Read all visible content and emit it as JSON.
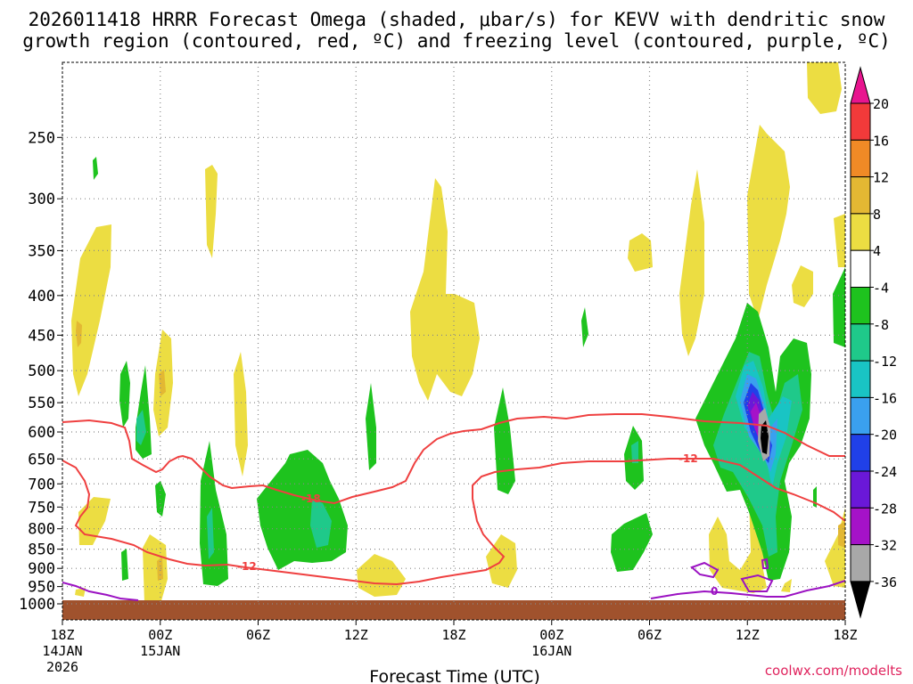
{
  "chart_data": {
    "type": "heatmap",
    "title_line1": "2026011418 HRRR Forecast Omega (shaded, μbar/s) for KEVV with dendritic snow",
    "title_line2": "growth region (contoured, red, ºC) and freezing level (contoured, purple, ºC)",
    "xlabel": "Forecast Time (UTC)",
    "ylabel": "",
    "credit": "coolwx.com/modelts",
    "x_ticks": [
      {
        "h": 0,
        "label": "18Z",
        "sub1": "14JAN",
        "sub2": "2026"
      },
      {
        "h": 6,
        "label": "00Z",
        "sub1": "15JAN",
        "sub2": ""
      },
      {
        "h": 12,
        "label": "06Z",
        "sub1": "",
        "sub2": ""
      },
      {
        "h": 18,
        "label": "12Z",
        "sub1": "",
        "sub2": ""
      },
      {
        "h": 24,
        "label": "18Z",
        "sub1": "",
        "sub2": ""
      },
      {
        "h": 30,
        "label": "00Z",
        "sub1": "16JAN",
        "sub2": ""
      },
      {
        "h": 36,
        "label": "06Z",
        "sub1": "",
        "sub2": ""
      },
      {
        "h": 42,
        "label": "12Z",
        "sub1": "",
        "sub2": ""
      },
      {
        "h": 48,
        "label": "18Z",
        "sub1": "",
        "sub2": ""
      }
    ],
    "xlim": [
      0,
      48
    ],
    "y_ticks": [
      250,
      300,
      350,
      400,
      450,
      500,
      550,
      600,
      650,
      700,
      750,
      800,
      850,
      900,
      950,
      1000
    ],
    "ylim": [
      1000,
      200
    ],
    "y_scale": "log-pressure",
    "colorbar": {
      "tick_labels": [
        "20",
        "16",
        "12",
        "8",
        "4",
        "-4",
        "-8",
        "-12",
        "-16",
        "-20",
        "-24",
        "-28",
        "-32",
        "-36"
      ],
      "colors": [
        "#e8158f",
        "#f23a3a",
        "#f08a26",
        "#e3b833",
        "#ecdd42",
        "#ffffff",
        "#1ec31e",
        "#1fc98a",
        "#19c4c4",
        "#3aa0ef",
        "#2040e8",
        "#6a18d8",
        "#a512c8",
        "#a8a8a8",
        "#000000"
      ]
    },
    "contour_labels": {
      "dgz_18": "-18",
      "dgz_12a": "-12",
      "dgz_12b": "-12",
      "freezing": "0"
    },
    "colors": {
      "dgz": "#ef4040",
      "freezing": "#9b12c2",
      "ground": "#a0522d",
      "grid": "#888888"
    },
    "grid": true
  }
}
